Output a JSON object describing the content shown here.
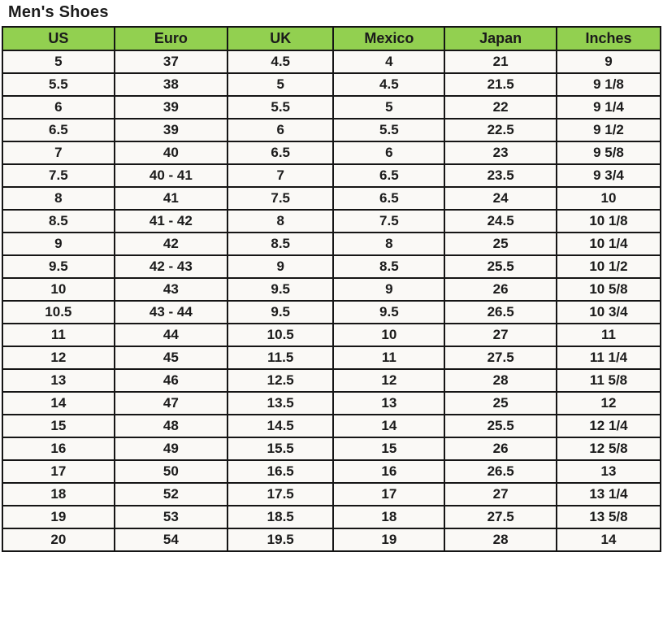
{
  "page": {
    "title": "Men's Shoes"
  },
  "table": {
    "columns": [
      "US",
      "Euro",
      "UK",
      "Mexico",
      "Japan",
      "Inches"
    ],
    "column_widths_pct": [
      17.0,
      17.2,
      16.1,
      16.9,
      17.0,
      15.8
    ],
    "rows": [
      [
        "5",
        "37",
        "4.5",
        "4",
        "21",
        "9"
      ],
      [
        "5.5",
        "38",
        "5",
        "4.5",
        "21.5",
        "9 1/8"
      ],
      [
        "6",
        "39",
        "5.5",
        "5",
        "22",
        "9 1/4"
      ],
      [
        "6.5",
        "39",
        "6",
        "5.5",
        "22.5",
        "9 1/2"
      ],
      [
        "7",
        "40",
        "6.5",
        "6",
        "23",
        "9 5/8"
      ],
      [
        "7.5",
        "40 - 41",
        "7",
        "6.5",
        "23.5",
        "9 3/4"
      ],
      [
        "8",
        "41",
        "7.5",
        "6.5",
        "24",
        "10"
      ],
      [
        "8.5",
        "41 - 42",
        "8",
        "7.5",
        "24.5",
        "10 1/8"
      ],
      [
        "9",
        "42",
        "8.5",
        "8",
        "25",
        "10 1/4"
      ],
      [
        "9.5",
        "42 - 43",
        "9",
        "8.5",
        "25.5",
        "10 1/2"
      ],
      [
        "10",
        "43",
        "9.5",
        "9",
        "26",
        "10 5/8"
      ],
      [
        "10.5",
        "43 - 44",
        "9.5",
        "9.5",
        "26.5",
        "10 3/4"
      ],
      [
        "11",
        "44",
        "10.5",
        "10",
        "27",
        "11"
      ],
      [
        "12",
        "45",
        "11.5",
        "11",
        "27.5",
        "11 1/4"
      ],
      [
        "13",
        "46",
        "12.5",
        "12",
        "28",
        "11 5/8"
      ],
      [
        "14",
        "47",
        "13.5",
        "13",
        "25",
        "12"
      ],
      [
        "15",
        "48",
        "14.5",
        "14",
        "25.5",
        "12 1/4"
      ],
      [
        "16",
        "49",
        "15.5",
        "15",
        "26",
        "12 5/8"
      ],
      [
        "17",
        "50",
        "16.5",
        "16",
        "26.5",
        "13"
      ],
      [
        "18",
        "52",
        "17.5",
        "17",
        "27",
        "13 1/4"
      ],
      [
        "19",
        "53",
        "18.5",
        "18",
        "27.5",
        "13 5/8"
      ],
      [
        "20",
        "54",
        "19.5",
        "19",
        "28",
        "14"
      ]
    ],
    "colors": {
      "header_bg": "#92d050",
      "cell_bg": "#faf9f6",
      "border": "#151515",
      "text": "#1b1b1b"
    }
  }
}
